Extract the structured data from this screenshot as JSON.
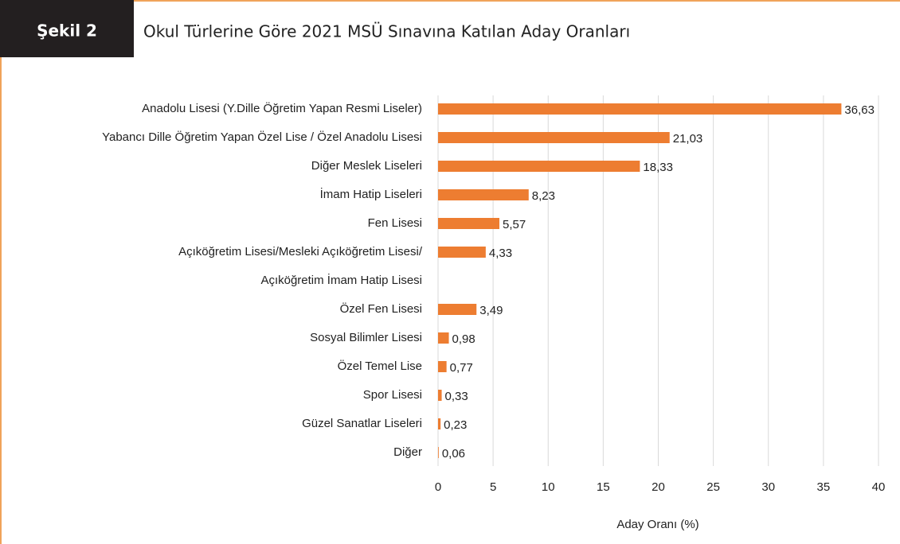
{
  "header": {
    "label": "Şekil 2",
    "title": "Okul Türlerine Göre 2021 MSÜ Sınavına Katılan Aday Oranları"
  },
  "chart_data": {
    "type": "hbar",
    "categories": [
      "Anadolu Lisesi (Y.Dille Öğretim Yapan Resmi Liseler)",
      "Yabancı Dille Öğretim Yapan Özel Lise / Özel Anadolu Lisesi",
      "Diğer Meslek Liseleri",
      "İmam Hatip Liseleri",
      "Fen Lisesi",
      [
        "Açıköğretim Lisesi/Mesleki Açıköğretim Lisesi/",
        "Açıköğretim İmam Hatip Lisesi"
      ],
      "Özel Fen Lisesi",
      "Sosyal Bilimler Lisesi",
      "Özel Temel Lise",
      "Spor Lisesi",
      "Güzel Sanatlar Liseleri",
      "Diğer"
    ],
    "values": [
      36.63,
      21.03,
      18.33,
      8.23,
      5.57,
      4.33,
      3.49,
      0.98,
      0.77,
      0.33,
      0.23,
      0.06
    ],
    "value_labels": [
      "36,63",
      "21,03",
      "18,33",
      "8,23",
      "5,57",
      "4,33",
      "3,49",
      "0,98",
      "0,77",
      "0,33",
      "0,23",
      "0,06"
    ],
    "color": "#ed7d31",
    "xlim": [
      0,
      40
    ],
    "xticks": [
      0,
      5,
      10,
      15,
      20,
      25,
      30,
      35,
      40
    ],
    "grid": true,
    "xlabel": "Aday Oranı (%)"
  }
}
